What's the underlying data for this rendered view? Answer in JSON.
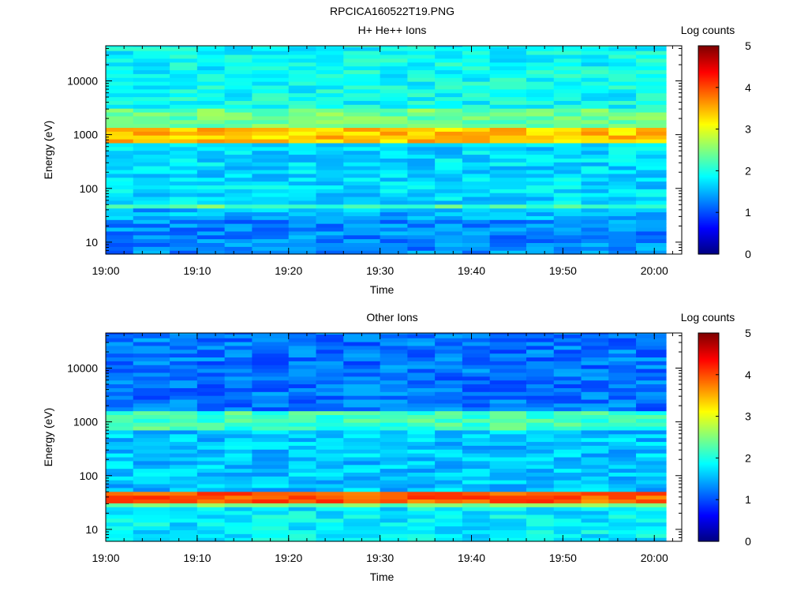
{
  "figure_title": "RPCICA160522T19.PNG",
  "colormap": [
    "#00007f",
    "#0000ff",
    "#007fff",
    "#00ffff",
    "#7fff7f",
    "#ffff00",
    "#ff7f00",
    "#ff0000",
    "#7f0000"
  ],
  "chart_data": [
    {
      "type": "heatmap",
      "title": "H+ He++ Ions",
      "xlabel": "Time",
      "ylabel": "Energy (eV)",
      "x_ticks": [
        "19:00",
        "19:10",
        "19:20",
        "19:30",
        "19:40",
        "19:50",
        "20:00"
      ],
      "xlim": [
        "19:00",
        "20:03"
      ],
      "y_scale": "log",
      "y_ticks": [
        "10",
        "100",
        "1000",
        "10000"
      ],
      "ylim": [
        6,
        45000
      ],
      "time_bins_start": [
        "19:00",
        "19:03",
        "19:07",
        "19:10",
        "19:13",
        "19:16",
        "19:20",
        "19:23",
        "19:26",
        "19:30",
        "19:33",
        "19:36",
        "19:39",
        "19:42",
        "19:46",
        "19:49",
        "19:52",
        "19:55",
        "19:58"
      ],
      "colorbar": {
        "label": "Log counts",
        "ticks": [
          "0",
          "1",
          "2",
          "3",
          "4",
          "5"
        ],
        "range": [
          0,
          5
        ]
      },
      "energy_bands_log_counts": [
        {
          "energy_range_ev": [
            6,
            25
          ],
          "log_counts": 1.3
        },
        {
          "energy_range_ev": [
            25,
            40
          ],
          "log_counts": 1.5
        },
        {
          "energy_range_ev": [
            40,
            55
          ],
          "log_counts": 2.3
        },
        {
          "energy_range_ev": [
            55,
            700
          ],
          "log_counts": 1.7
        },
        {
          "energy_range_ev": [
            700,
            1400
          ],
          "log_counts": 3.4
        },
        {
          "energy_range_ev": [
            1400,
            3000
          ],
          "log_counts": 2.4
        },
        {
          "energy_range_ev": [
            3000,
            45000
          ],
          "log_counts": 1.9
        }
      ]
    },
    {
      "type": "heatmap",
      "title": "Other Ions",
      "xlabel": "Time",
      "ylabel": "Energy (eV)",
      "x_ticks": [
        "19:00",
        "19:10",
        "19:20",
        "19:30",
        "19:40",
        "19:50",
        "20:00"
      ],
      "xlim": [
        "19:00",
        "20:03"
      ],
      "y_scale": "log",
      "y_ticks": [
        "10",
        "100",
        "1000",
        "10000"
      ],
      "ylim": [
        6,
        45000
      ],
      "time_bins_start": [
        "19:00",
        "19:03",
        "19:07",
        "19:10",
        "19:13",
        "19:16",
        "19:20",
        "19:23",
        "19:26",
        "19:30",
        "19:33",
        "19:36",
        "19:39",
        "19:42",
        "19:46",
        "19:49",
        "19:52",
        "19:55",
        "19:58"
      ],
      "colorbar": {
        "label": "Log counts",
        "ticks": [
          "0",
          "1",
          "2",
          "3",
          "4",
          "5"
        ],
        "range": [
          0,
          5
        ]
      },
      "energy_bands_log_counts": [
        {
          "energy_range_ev": [
            6,
            25
          ],
          "log_counts": 1.8
        },
        {
          "energy_range_ev": [
            25,
            32
          ],
          "log_counts": 2.4
        },
        {
          "energy_range_ev": [
            32,
            55
          ],
          "log_counts": 3.9
        },
        {
          "energy_range_ev": [
            55,
            700
          ],
          "log_counts": 1.6
        },
        {
          "energy_range_ev": [
            700,
            1500
          ],
          "log_counts": 2.2
        },
        {
          "energy_range_ev": [
            1500,
            45000
          ],
          "log_counts": 1.2
        }
      ]
    }
  ]
}
